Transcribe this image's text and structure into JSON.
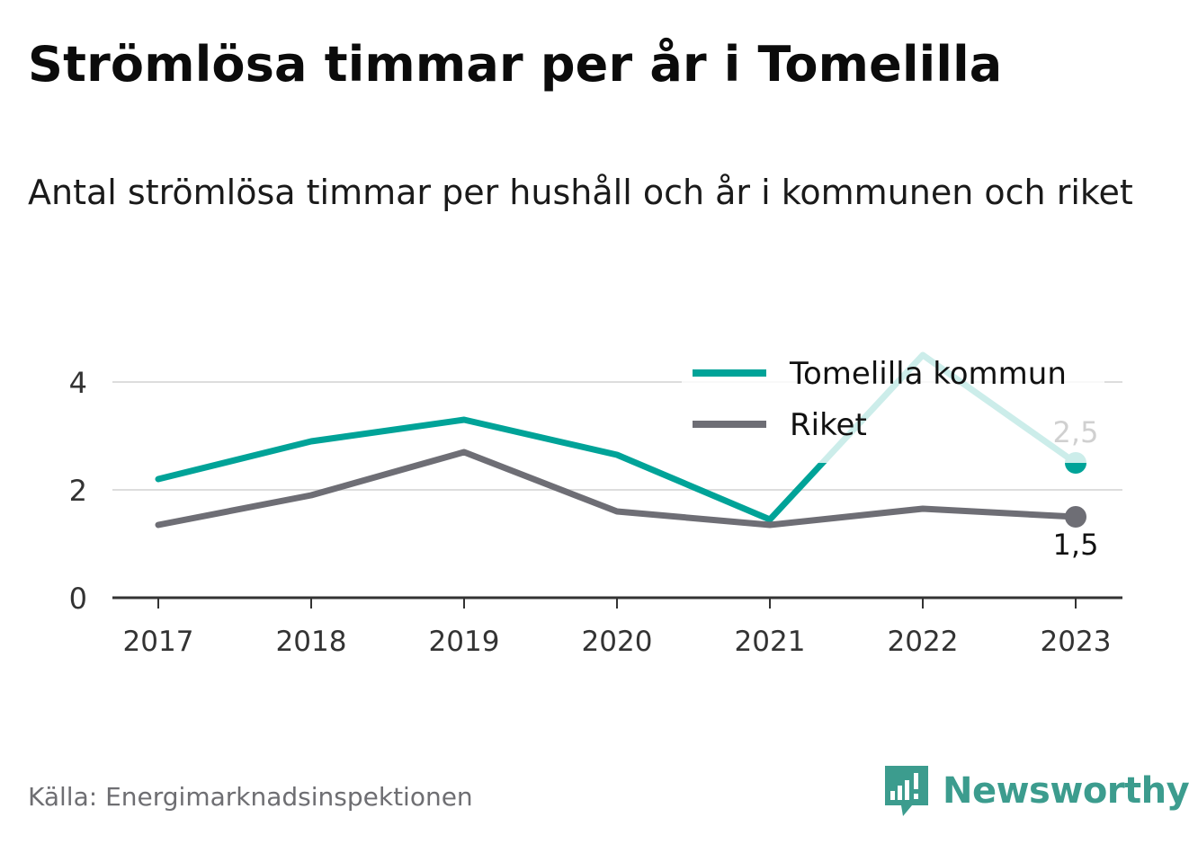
{
  "header": {
    "title": "Strömlösa timmar per år i Tomelilla",
    "subtitle": "Antal strömlösa timmar per hushåll och år i kommunen och riket"
  },
  "footer": {
    "source": "Källa: Energimarknadsinspektionen",
    "brand": "Newsworthy",
    "brand_icon": "bar-chart-icon"
  },
  "colors": {
    "tomelilla": "#00a398",
    "riket": "#6e6e75",
    "grid": "#dddddd",
    "axis": "#333333"
  },
  "chart_data": {
    "type": "line",
    "x": [
      2017,
      2018,
      2019,
      2020,
      2021,
      2022,
      2023
    ],
    "ylim": [
      0,
      4.6
    ],
    "yticks": [
      0,
      2,
      4
    ],
    "grid": true,
    "legend_position": "top-right",
    "series": [
      {
        "name": "Tomelilla kommun",
        "values": [
          2.2,
          2.9,
          3.3,
          2.65,
          1.45,
          4.5,
          2.5
        ],
        "end_label": "2,5"
      },
      {
        "name": "Riket",
        "values": [
          1.35,
          1.9,
          2.7,
          1.6,
          1.35,
          1.65,
          1.5
        ],
        "end_label": "1,5"
      }
    ]
  }
}
